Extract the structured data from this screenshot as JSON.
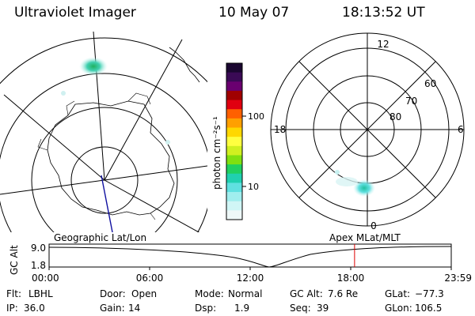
{
  "header": {
    "title": "Ultraviolet Imager",
    "date": "10 May 07",
    "time": "18:13:52 UT"
  },
  "colorbar": {
    "unit_label": "photon cm⁻²s⁻¹",
    "ticks": [
      "100",
      "10"
    ],
    "colors": [
      "#1a0630",
      "#3a0a55",
      "#6a0070",
      "#a00000",
      "#e00010",
      "#ff6000",
      "#ffa000",
      "#ffd800",
      "#ffff40",
      "#d0f020",
      "#80e010",
      "#20d060",
      "#20d0b0",
      "#60e0e0",
      "#a0eeee",
      "#d0f6f6",
      "#eef8f8"
    ]
  },
  "polar_map": {
    "mlt_labels": {
      "top": "12",
      "bottom": "0",
      "left": "18",
      "right": "6"
    },
    "lat_labels": [
      "60",
      "70",
      "80"
    ]
  },
  "timeline": {
    "left_label": "Geographic Lat/Lon",
    "right_label": "Apex  MLat/MLT",
    "axis_label": "GC Alt",
    "y_ticks": [
      "9.0",
      "1.8"
    ],
    "x_ticks": [
      "00:00",
      "06:00",
      "12:00",
      "18:00",
      "23:59"
    ],
    "marker_time_hours": 18.23,
    "marker_color": "#dd0000"
  },
  "params": {
    "flt_label": "Flt:",
    "flt": "LBHL",
    "door_label": "Door:",
    "door": "Open",
    "mode_label": "Mode:",
    "mode": "Normal",
    "gcalt_label": "GC Alt:",
    "gcalt": "7.6 Re",
    "glat_label": "GLat:",
    "glat": "−77.3",
    "ip_label": "IP:",
    "ip": "36.0",
    "gain_label": "Gain:",
    "gain": "14",
    "dsp_label": "Dsp:",
    "dsp": "1.9",
    "seq_label": "Seq:",
    "seq": "39",
    "glon_label": "GLon:",
    "glon": "106.5"
  }
}
